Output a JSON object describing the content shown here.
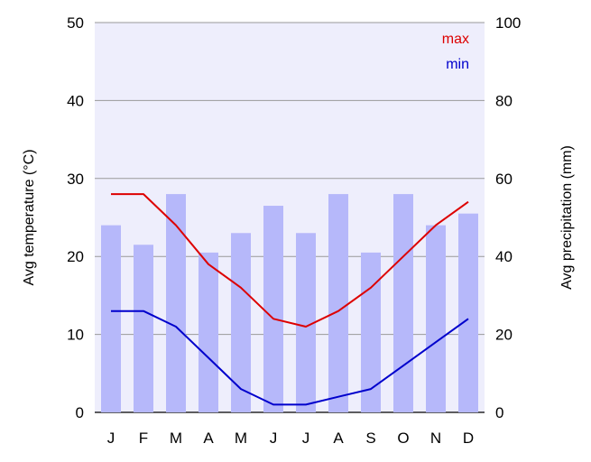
{
  "chart_data": {
    "type": "bar+line",
    "categories": [
      "J",
      "F",
      "M",
      "A",
      "M",
      "J",
      "J",
      "A",
      "S",
      "O",
      "N",
      "D"
    ],
    "bars": {
      "axis": "right",
      "values": [
        48,
        43,
        56,
        41,
        46,
        53,
        46,
        56,
        41,
        56,
        48,
        51
      ]
    },
    "series": [
      {
        "name": "max",
        "axis": "left",
        "values": [
          28,
          28,
          24,
          19,
          16,
          12,
          11,
          13,
          16,
          20,
          24,
          27
        ]
      },
      {
        "name": "min",
        "axis": "left",
        "values": [
          13,
          13,
          11,
          7,
          3,
          1,
          1,
          2,
          3,
          6,
          9,
          12
        ]
      }
    ],
    "ylabel_left": "Avg temperature (°C)",
    "ylabel_right": "Avg precipitation (mm)",
    "ylim_left": [
      0,
      50
    ],
    "ylim_right": [
      0,
      100
    ],
    "yticks_left": [
      "0",
      "10",
      "20",
      "30",
      "40",
      "50"
    ],
    "yticks_right": [
      "0",
      "20",
      "40",
      "60",
      "80",
      "100"
    ],
    "grid": "horizontal",
    "legend": "top-right",
    "colors": {
      "plot_background": "#eeeefc",
      "bars": "#b6b8fa",
      "max": "#dd0000",
      "min": "#0000cc",
      "grid": "#999999"
    }
  }
}
